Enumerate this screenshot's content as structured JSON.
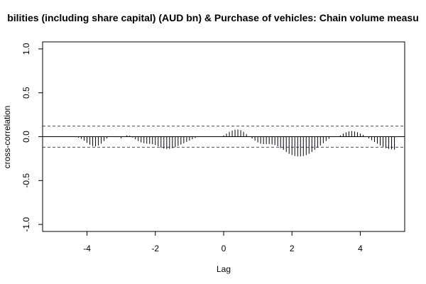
{
  "chart_data": {
    "type": "bar",
    "title": "bilities (including share capital) (AUD bn)  & Purchase of vehicles: Chain volume measu",
    "xlabel": "Lag",
    "ylabel": "cross-correlation",
    "xlim": [
      -5.3,
      5.3
    ],
    "ylim": [
      -1.08,
      1.08
    ],
    "xticks": [
      -4,
      -2,
      0,
      2,
      4
    ],
    "yticks": [
      -1.0,
      -0.5,
      0.0,
      0.5,
      1.0
    ],
    "xtick_labels": [
      "-4",
      "-2",
      "0",
      "2",
      "4"
    ],
    "ytick_labels": [
      "-1.0",
      "-0.5",
      "0.0",
      "0.5",
      "1.0"
    ],
    "grid": false,
    "confidence_limit": 0.12,
    "colors": {
      "bars": "#000000",
      "zero_line": "#000000",
      "confidence": "#3b3bd6",
      "axis": "#000000"
    },
    "lags": [
      -5.0,
      -4.9167,
      -4.8333,
      -4.75,
      -4.6667,
      -4.5833,
      -4.5,
      -4.4167,
      -4.3333,
      -4.25,
      -4.1667,
      -4.0833,
      -4.0,
      -3.9167,
      -3.8333,
      -3.75,
      -3.6667,
      -3.5833,
      -3.5,
      -3.4167,
      -3.3333,
      -3.25,
      -3.1667,
      -3.0833,
      -3.0,
      -2.9167,
      -2.8333,
      -2.75,
      -2.6667,
      -2.5833,
      -2.5,
      -2.4167,
      -2.3333,
      -2.25,
      -2.1667,
      -2.0833,
      -2.0,
      -1.9167,
      -1.8333,
      -1.75,
      -1.6667,
      -1.5833,
      -1.5,
      -1.4167,
      -1.3333,
      -1.25,
      -1.1667,
      -1.0833,
      -1.0,
      -0.9167,
      -0.8333,
      -0.75,
      -0.6667,
      -0.5833,
      -0.5,
      -0.4167,
      -0.3333,
      -0.25,
      -0.1667,
      -0.0833,
      0.0,
      0.0833,
      0.1667,
      0.25,
      0.3333,
      0.4167,
      0.5,
      0.5833,
      0.6667,
      0.75,
      0.8333,
      0.9167,
      1.0,
      1.0833,
      1.1667,
      1.25,
      1.3333,
      1.4167,
      1.5,
      1.5833,
      1.6667,
      1.75,
      1.8333,
      1.9167,
      2.0,
      2.0833,
      2.1667,
      2.25,
      2.3333,
      2.4167,
      2.5,
      2.5833,
      2.6667,
      2.75,
      2.8333,
      2.9167,
      3.0,
      3.0833,
      3.1667,
      3.25,
      3.3333,
      3.4167,
      3.5,
      3.5833,
      3.6667,
      3.75,
      3.8333,
      3.9167,
      4.0,
      4.0833,
      4.1667,
      4.25,
      4.3333,
      4.4167,
      4.5,
      4.5833,
      4.6667,
      4.75,
      4.8333,
      4.9167,
      5.0
    ],
    "values": [
      0.003,
      0.004,
      0.004,
      0.003,
      0.002,
      0.001,
      0.0,
      -0.002,
      -0.005,
      -0.012,
      -0.025,
      -0.045,
      -0.07,
      -0.092,
      -0.107,
      -0.11,
      -0.1,
      -0.08,
      -0.05,
      -0.02,
      0.0,
      0.005,
      0.002,
      -0.005,
      -0.02,
      0.0,
      0.015,
      0.01,
      -0.01,
      -0.03,
      -0.05,
      -0.065,
      -0.075,
      -0.08,
      -0.082,
      -0.085,
      -0.095,
      -0.11,
      -0.125,
      -0.135,
      -0.14,
      -0.138,
      -0.13,
      -0.12,
      -0.105,
      -0.09,
      -0.075,
      -0.06,
      -0.045,
      -0.03,
      -0.015,
      -0.005,
      0.0,
      0.0,
      0.0,
      0.0,
      0.0,
      0.0,
      0.0,
      0.0,
      0.015,
      0.035,
      0.055,
      0.07,
      0.08,
      0.082,
      0.075,
      0.055,
      0.03,
      0.005,
      -0.02,
      -0.045,
      -0.065,
      -0.08,
      -0.085,
      -0.085,
      -0.085,
      -0.088,
      -0.095,
      -0.11,
      -0.13,
      -0.15,
      -0.175,
      -0.195,
      -0.21,
      -0.22,
      -0.225,
      -0.225,
      -0.22,
      -0.21,
      -0.195,
      -0.175,
      -0.15,
      -0.125,
      -0.1,
      -0.075,
      -0.05,
      -0.025,
      -0.005,
      0.0,
      0.0,
      0.015,
      0.035,
      0.05,
      0.06,
      0.065,
      0.06,
      0.05,
      0.035,
      0.02,
      0.0,
      -0.02,
      -0.04,
      -0.06,
      -0.08,
      -0.1,
      -0.115,
      -0.13,
      -0.14,
      -0.145,
      -0.148
    ]
  }
}
